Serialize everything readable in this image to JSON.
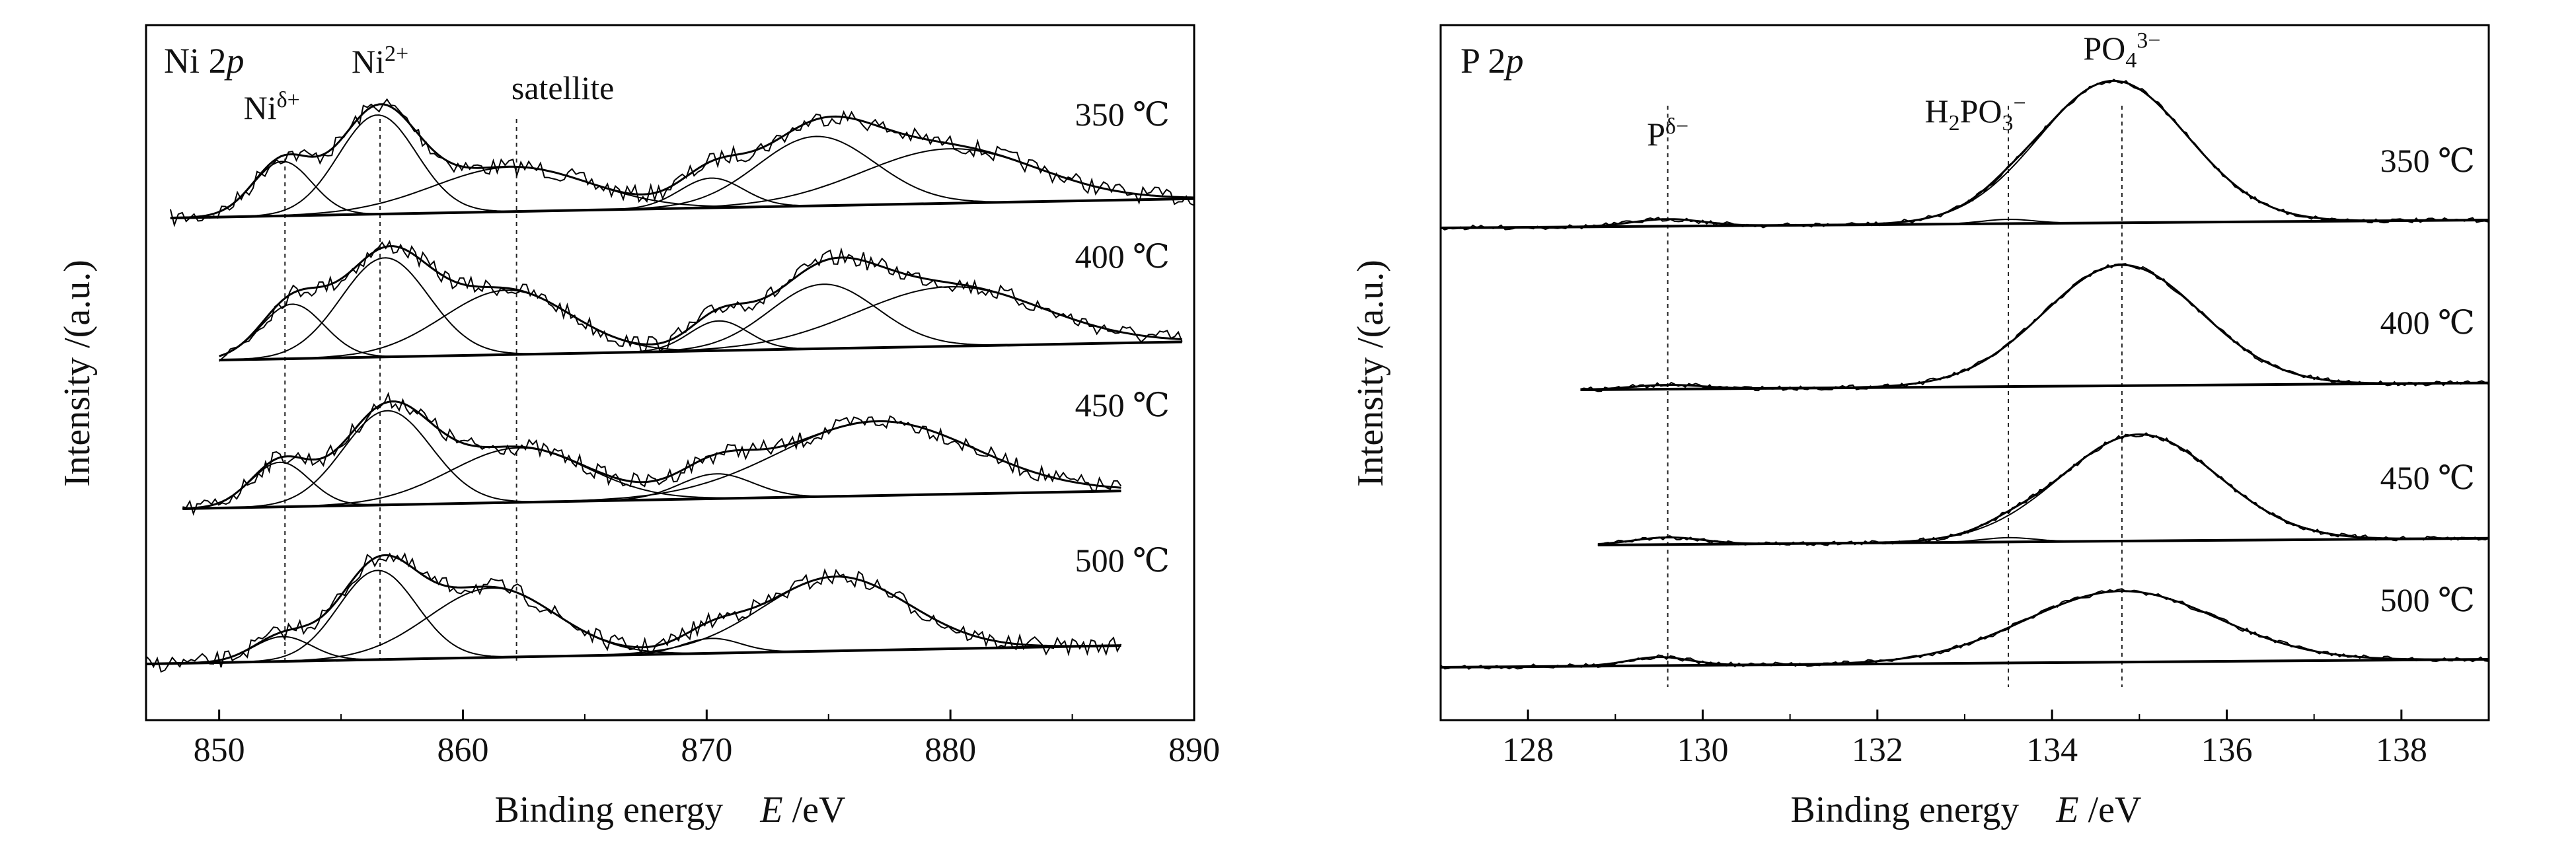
{
  "chart_data": [
    {
      "type": "line",
      "panel_title": "Ni 2p",
      "xlabel": "Binding energy E /eV",
      "ylabel": "Intensity /(a.u.)",
      "xlim": [
        847,
        890
      ],
      "xticks": [
        "850",
        "860",
        "870",
        "880",
        "890"
      ],
      "y_ticks": "none",
      "peak_labels": [
        {
          "text": "Niδ+",
          "x": 852.7
        },
        {
          "text": "Ni2+",
          "x": 856.6
        },
        {
          "text": "satellite",
          "x": 862.2
        }
      ],
      "reference_lines_x": [
        852.7,
        856.6,
        862.2
      ],
      "series": [
        {
          "name": "350 ℃",
          "x_range": [
            848,
            890
          ],
          "peaks": [
            {
              "center": 852.6,
              "height": 0.55,
              "width": 1.2
            },
            {
              "center": 856.5,
              "height": 1.0,
              "width": 1.6
            },
            {
              "center": 862.0,
              "height": 0.45,
              "width": 3.2
            },
            {
              "center": 870.2,
              "height": 0.3,
              "width": 1.3
            },
            {
              "center": 874.5,
              "height": 0.7,
              "width": 2.4
            },
            {
              "center": 880.0,
              "height": 0.55,
              "width": 3.6
            }
          ]
        },
        {
          "name": "400 ℃",
          "x_range": [
            850,
            889.5
          ],
          "peaks": [
            {
              "center": 853.0,
              "height": 0.55,
              "width": 1.3
            },
            {
              "center": 856.8,
              "height": 1.0,
              "width": 1.8
            },
            {
              "center": 861.8,
              "height": 0.65,
              "width": 2.6
            },
            {
              "center": 870.5,
              "height": 0.3,
              "width": 1.2
            },
            {
              "center": 874.8,
              "height": 0.65,
              "width": 2.2
            },
            {
              "center": 880.0,
              "height": 0.6,
              "width": 3.8
            }
          ]
        },
        {
          "name": "450 ℃",
          "x_range": [
            848.5,
            887
          ],
          "peaks": [
            {
              "center": 852.5,
              "height": 0.45,
              "width": 1.2
            },
            {
              "center": 856.9,
              "height": 0.95,
              "width": 1.8
            },
            {
              "center": 862.3,
              "height": 0.55,
              "width": 2.8
            },
            {
              "center": 870.4,
              "height": 0.25,
              "width": 1.5
            },
            {
              "center": 877.0,
              "height": 0.75,
              "width": 4.0
            }
          ]
        },
        {
          "name": "500 ℃",
          "x_range": [
            847,
            887
          ],
          "peaks": [
            {
              "center": 852.6,
              "height": 0.25,
              "width": 1.2
            },
            {
              "center": 856.5,
              "height": 0.9,
              "width": 1.6
            },
            {
              "center": 861.2,
              "height": 0.7,
              "width": 2.6
            },
            {
              "center": 870.2,
              "height": 0.15,
              "width": 1.2
            },
            {
              "center": 875.3,
              "height": 0.75,
              "width": 3.0
            }
          ]
        }
      ]
    },
    {
      "type": "line",
      "panel_title": "P 2p",
      "xlabel": "Binding energy E /eV",
      "ylabel": "Intensity /(a.u.)",
      "xlim": [
        127,
        139
      ],
      "xticks": [
        "128",
        "130",
        "132",
        "134",
        "136",
        "138"
      ],
      "y_ticks": "none",
      "peak_labels": [
        {
          "text": "Pδ−",
          "x": 129.6
        },
        {
          "text": "H2PO3−",
          "x": 133.5
        },
        {
          "text": "PO43−",
          "x": 134.8
        }
      ],
      "reference_lines_x": [
        129.6,
        133.5,
        134.8
      ],
      "series": [
        {
          "name": "350 ℃",
          "x_range": [
            127,
            139
          ],
          "peaks": [
            {
              "center": 129.6,
              "height": 0.05,
              "width": 0.4
            },
            {
              "center": 133.5,
              "height": 0.03,
              "width": 0.3
            },
            {
              "center": 134.7,
              "height": 1.0,
              "width": 0.85
            }
          ]
        },
        {
          "name": "400 ℃",
          "x_range": [
            128.6,
            139
          ],
          "peaks": [
            {
              "center": 129.6,
              "height": 0.03,
              "width": 0.4
            },
            {
              "center": 134.8,
              "height": 0.85,
              "width": 0.9
            }
          ]
        },
        {
          "name": "450 ℃",
          "x_range": [
            128.8,
            139
          ],
          "peaks": [
            {
              "center": 129.6,
              "height": 0.05,
              "width": 0.4
            },
            {
              "center": 133.5,
              "height": 0.03,
              "width": 0.3
            },
            {
              "center": 135.0,
              "height": 0.75,
              "width": 0.9
            }
          ]
        },
        {
          "name": "500 ℃",
          "x_range": [
            127,
            139
          ],
          "peaks": [
            {
              "center": 129.5,
              "height": 0.06,
              "width": 0.35
            },
            {
              "center": 134.8,
              "height": 0.5,
              "width": 1.1
            }
          ]
        }
      ]
    }
  ]
}
